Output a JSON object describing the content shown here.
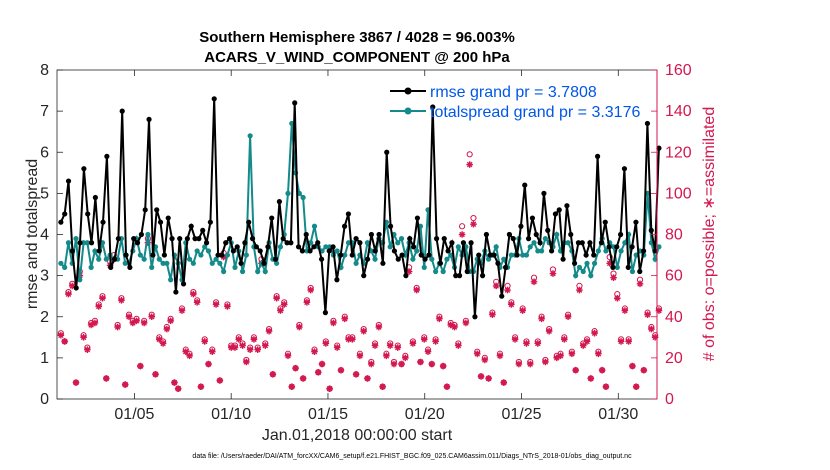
{
  "chart_data": {
    "type": "line",
    "title_line1": "Southern Hemisphere 3867 / 4028 = 96.003%",
    "title_line2": "ACARS_V_WIND_COMPONENT @ 200 hPa",
    "xlabel": "Jan.01,2018 00:00:00 start",
    "ylabel": "rmse and totalspread",
    "ylabel_right": "# of obs: o=possible; ∗=assimilated",
    "xlim": [
      1,
      32
    ],
    "ylim": [
      0,
      8
    ],
    "ylim_right": [
      0,
      160
    ],
    "xticks": [
      5,
      10,
      15,
      20,
      25,
      30
    ],
    "xtick_labels": [
      "01/05",
      "01/10",
      "01/15",
      "01/20",
      "01/25",
      "01/30"
    ],
    "yticks": [
      0,
      1,
      2,
      3,
      4,
      5,
      6,
      7,
      8
    ],
    "yticks_right": [
      0,
      20,
      40,
      60,
      80,
      100,
      120,
      140,
      160
    ],
    "footnote": "data file: /Users/raeder/DAI/ATM_forcXX/CAM6_setup/f.e21.FHIST_BGC.f09_025.CAM6assim.011/Diags_NTrS_2018-01/obs_diag_output.nc",
    "colors": {
      "rmse": "#000000",
      "spread": "#148a8a",
      "obs": "#d3174f",
      "legend_text": "#0057e7"
    },
    "series": [
      {
        "name": "rmse grand pr = 3.7808",
        "axis": "left",
        "values": [
          4.3,
          4.5,
          5.3,
          3.6,
          2.7,
          3.8,
          5.6,
          4.5,
          3.8,
          4.9,
          3.6,
          4.3,
          5.9,
          3.2,
          3.4,
          3.9,
          7.0,
          3.5,
          3.2,
          3.9,
          3.8,
          4.0,
          4.6,
          6.8,
          3.5,
          4.6,
          4.3,
          3.5,
          4.4,
          3.9,
          2.6,
          3.9,
          2.8,
          3.9,
          4.2,
          3.9,
          3.9,
          4.1,
          3.8,
          4.3,
          7.3,
          3.5,
          3.5,
          3.8,
          3.9,
          3.6,
          3.7,
          3.3,
          3.8,
          4.3,
          3.9,
          3.7,
          3.6,
          3.3,
          3.7,
          4.4,
          3.4,
          4.8,
          3.9,
          3.8,
          3.8,
          7.2,
          3.7,
          3.6,
          4.0,
          3.6,
          3.7,
          3.8,
          3.4,
          2.1,
          3.6,
          3.7,
          2.9,
          3.5,
          4.2,
          4.5,
          3.5,
          3.9,
          3.8,
          3.0,
          3.4,
          4.0,
          3.6,
          4.0,
          3.3,
          6.0,
          4.2,
          3.6,
          3.4,
          3.5,
          3.0,
          3.9,
          3.7,
          4.4,
          3.5,
          3.4,
          3.5,
          7.1,
          3.9,
          3.3,
          3.9,
          3.6,
          3.8,
          3.0,
          3.0,
          3.8,
          3.1,
          3.8,
          2.0,
          3.5,
          3.0,
          4.0,
          3.5,
          3.5,
          3.3,
          2.5,
          3.2,
          4.0,
          3.9,
          3.5,
          4.2,
          5.2,
          3.9,
          4.4,
          4.0,
          3.8,
          5.0,
          4.1,
          3.6,
          4.5,
          4.6,
          3.4,
          4.7,
          4.0,
          3.3,
          3.8,
          3.8,
          3.5,
          3.8,
          3.5,
          5.9,
          3.8,
          4.3,
          3.7,
          3.2,
          3.7,
          4.0,
          5.6,
          3.2,
          3.7,
          4.3,
          3.1,
          3.6,
          6.7,
          4.1,
          3.6,
          6.1
        ]
      },
      {
        "name": "totalspread grand pr = 3.3176",
        "axis": "left",
        "values": [
          3.3,
          3.2,
          3.8,
          3.3,
          3.9,
          2.9,
          3.8,
          3.8,
          3.2,
          3.6,
          3.4,
          3.8,
          3.4,
          3.5,
          3.4,
          3.4,
          3.9,
          3.3,
          3.3,
          3.6,
          3.9,
          3.5,
          3.4,
          4.0,
          3.2,
          3.7,
          3.4,
          3.3,
          3.3,
          2.9,
          3.5,
          3.3,
          2.9,
          3.8,
          3.4,
          3.3,
          3.6,
          3.5,
          3.7,
          3.6,
          3.3,
          3.4,
          3.3,
          3.1,
          3.5,
          3.8,
          3.2,
          3.6,
          3.1,
          3.5,
          6.4,
          3.7,
          3.1,
          3.3,
          3.1,
          3.8,
          3.4,
          3.3,
          3.7,
          4.0,
          5.0,
          6.7,
          5.5,
          5.0,
          4.9,
          3.6,
          3.8,
          4.2,
          3.7,
          3.6,
          3.7,
          3.7,
          3.5,
          3.6,
          3.2,
          3.5,
          3.8,
          3.8,
          3.3,
          3.5,
          3.3,
          3.8,
          3.6,
          3.4,
          3.9,
          3.8,
          4.3,
          3.7,
          4.0,
          3.8,
          3.9,
          3.5,
          3.8,
          3.4,
          3.6,
          4.2,
          3.2,
          4.6,
          3.4,
          3.1,
          3.3,
          3.1,
          3.4,
          3.5,
          3.2,
          3.7,
          3.5,
          3.7,
          3.1,
          3.1,
          3.4,
          3.3,
          3.6,
          3.4,
          3.5,
          3.7,
          3.2,
          3.4,
          3.2,
          3.5,
          3.5,
          3.9,
          3.5,
          3.5,
          3.7,
          3.8,
          3.6,
          3.6,
          3.9,
          3.8,
          3.7,
          4.0,
          3.6,
          3.8,
          3.8,
          3.6,
          3.0,
          3.2,
          3.1,
          3.3,
          3.0,
          3.3,
          3.6,
          3.9,
          3.6,
          3.8,
          3.7,
          3.2,
          3.6,
          3.8,
          4.0,
          3.1,
          3.5,
          3.6,
          3.5,
          5.0,
          3.8,
          3.4,
          3.7
        ]
      },
      {
        "name": "obs possible",
        "axis": "right",
        "marker": "o",
        "values": [
          32,
          28,
          52,
          56,
          8,
          62,
          31,
          25,
          37,
          38,
          46,
          50,
          10,
          67,
          70,
          36,
          49,
          7,
          41,
          38,
          39,
          16,
          38,
          78,
          41,
          12,
          30,
          28,
          35,
          39,
          8,
          5,
          44,
          24,
          22,
          52,
          48,
          6,
          29,
          17,
          24,
          47,
          9,
          71,
          46,
          26,
          26,
          30,
          27,
          19,
          25,
          30,
          25,
          68,
          27,
          34,
          12,
          50,
          44,
          47,
          22,
          6,
          15,
          36,
          10,
          48,
          54,
          24,
          13,
          17,
          28,
          5,
          38,
          26,
          14,
          40,
          30,
          30,
          12,
          22,
          34,
          10,
          18,
          27,
          36,
          6,
          22,
          27,
          18,
          26,
          17,
          21,
          64,
          28,
          54,
          18,
          30,
          24,
          17,
          29,
          40,
          16,
          6,
          37,
          36,
          27,
          84,
          38,
          119,
          88,
          23,
          11,
          20,
          10,
          42,
          57,
          22,
          8,
          55,
          47,
          30,
          18,
          44,
          28,
          18,
          59,
          28,
          40,
          19,
          34,
          63,
          21,
          22,
          30,
          41,
          23,
          14,
          55,
          27,
          29,
          10,
          33,
          23,
          14,
          6,
          69,
          61,
          51,
          29,
          44,
          29,
          16,
          6,
          58,
          14,
          42,
          35,
          31,
          44
        ]
      },
      {
        "name": "obs assimilated",
        "axis": "right",
        "marker": "*",
        "values": [
          31,
          28,
          51,
          55,
          8,
          60,
          30,
          24,
          36,
          37,
          45,
          49,
          10,
          65,
          68,
          35,
          48,
          7,
          40,
          37,
          38,
          16,
          37,
          76,
          40,
          12,
          29,
          27,
          34,
          38,
          8,
          5,
          43,
          23,
          21,
          51,
          47,
          6,
          28,
          17,
          23,
          46,
          9,
          69,
          45,
          25,
          25,
          29,
          26,
          18,
          24,
          29,
          24,
          66,
          26,
          33,
          12,
          49,
          43,
          46,
          21,
          6,
          15,
          35,
          10,
          47,
          53,
          23,
          13,
          17,
          27,
          5,
          37,
          25,
          14,
          39,
          29,
          29,
          12,
          21,
          33,
          10,
          17,
          26,
          35,
          6,
          21,
          26,
          17,
          25,
          17,
          20,
          62,
          27,
          53,
          18,
          29,
          23,
          17,
          28,
          39,
          16,
          6,
          36,
          35,
          26,
          80,
          37,
          114,
          85,
          22,
          11,
          19,
          10,
          41,
          55,
          21,
          8,
          53,
          46,
          29,
          17,
          43,
          27,
          17,
          57,
          27,
          39,
          18,
          33,
          61,
          20,
          21,
          29,
          40,
          22,
          14,
          53,
          26,
          28,
          10,
          32,
          22,
          14,
          6,
          66,
          59,
          49,
          28,
          43,
          28,
          16,
          6,
          56,
          14,
          41,
          34,
          30,
          43
        ]
      }
    ]
  }
}
